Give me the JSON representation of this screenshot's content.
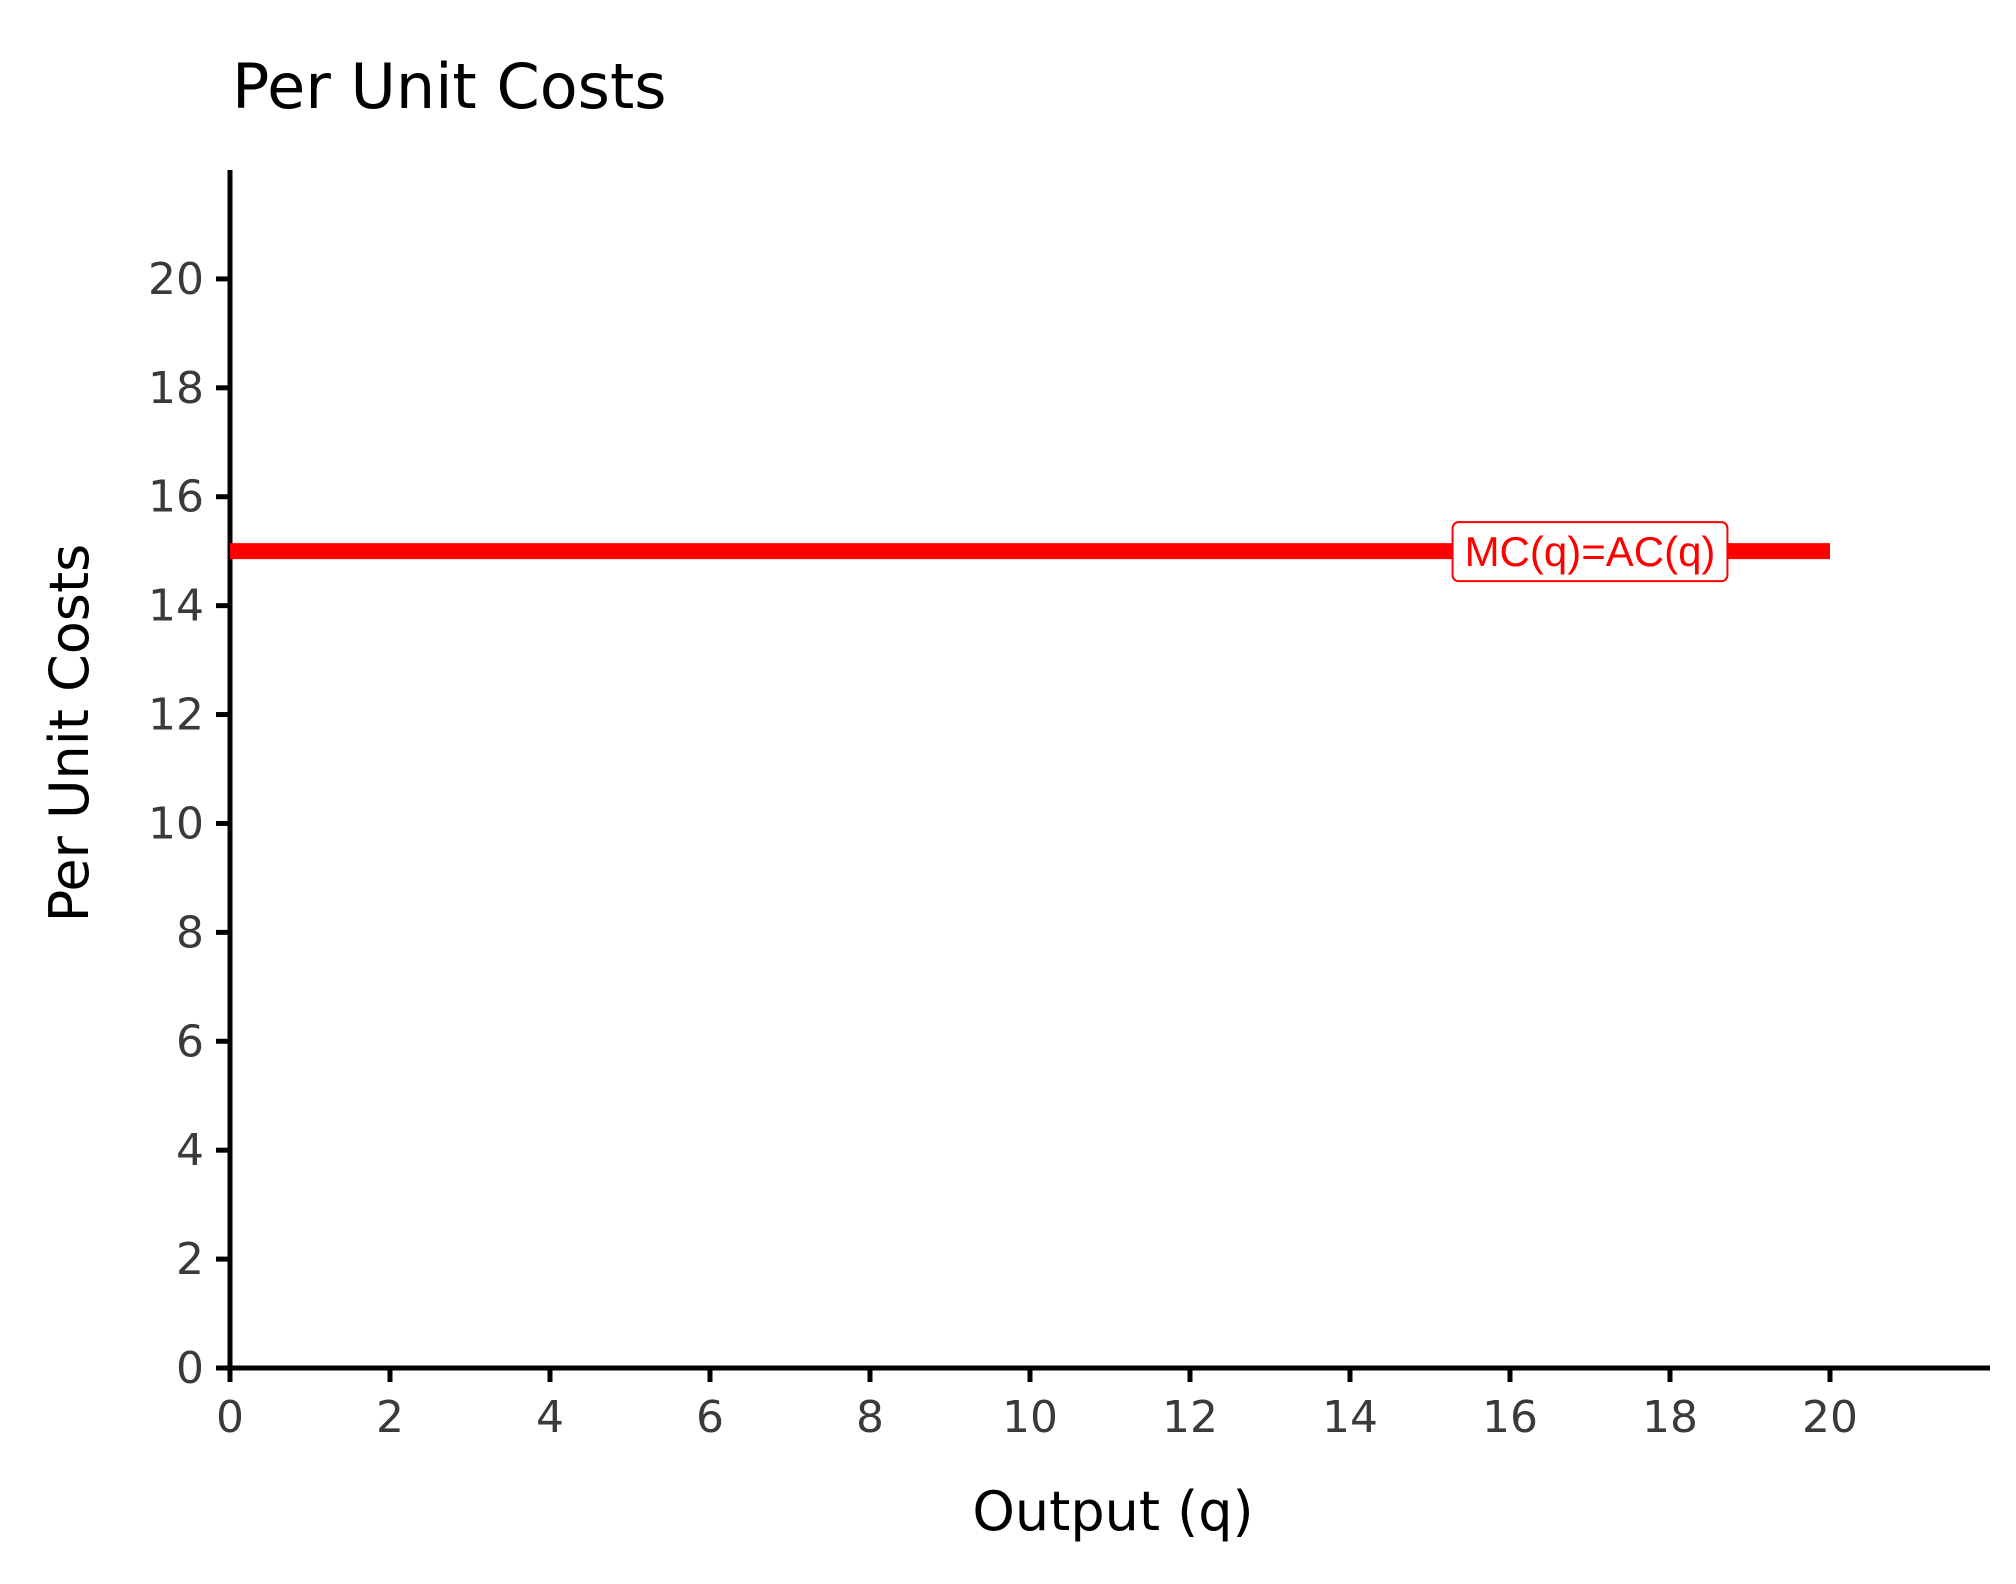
{
  "chart_data": {
    "type": "line",
    "title": "Per Unit Costs",
    "xlabel": "Output (q)",
    "ylabel": "Per Unit Costs",
    "xlim": [
      0,
      22
    ],
    "ylim": [
      0,
      22
    ],
    "x_ticks": [
      0,
      2,
      4,
      6,
      8,
      10,
      12,
      14,
      16,
      18,
      20
    ],
    "y_ticks": [
      0,
      2,
      4,
      6,
      8,
      10,
      12,
      14,
      16,
      18,
      20
    ],
    "grid": false,
    "series": [
      {
        "color": "#ff0000",
        "x": [
          0,
          20
        ],
        "y": [
          15,
          15
        ]
      }
    ],
    "annotations": [
      {
        "text": "MC(q)=AC(q)",
        "x": 17,
        "y": 15,
        "color": "#ff0000"
      }
    ]
  }
}
